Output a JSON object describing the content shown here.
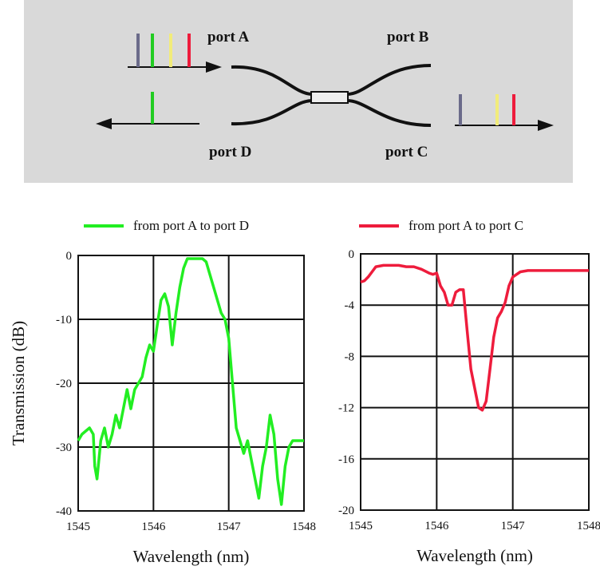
{
  "diagram": {
    "ports": {
      "a": "port A",
      "b": "port B",
      "c": "port C",
      "d": "port D"
    },
    "colors": {
      "background": "#d9d9d9",
      "line_gray": "#6b6b8a",
      "line_green": "#22cc22",
      "line_yellow": "#f2ec7a",
      "line_red": "#ee1c3c"
    }
  },
  "chart_data": [
    {
      "type": "line",
      "legend": "from port A to port D",
      "xlabel": "Wavelength (nm)",
      "ylabel": "Transmission (dB)",
      "xlim": [
        1545,
        1548
      ],
      "ylim": [
        -40,
        0
      ],
      "xticks": [
        "1545",
        "1546",
        "1547",
        "1548"
      ],
      "yticks": [
        "0",
        "-10",
        "-20",
        "-30",
        "-40"
      ],
      "grid": true,
      "color": "#22ee22",
      "x": [
        1545.0,
        1545.05,
        1545.1,
        1545.15,
        1545.2,
        1545.22,
        1545.25,
        1545.3,
        1545.35,
        1545.4,
        1545.45,
        1545.5,
        1545.55,
        1545.6,
        1545.65,
        1545.7,
        1545.75,
        1545.8,
        1545.85,
        1545.9,
        1545.95,
        1546.0,
        1546.05,
        1546.1,
        1546.15,
        1546.2,
        1546.25,
        1546.3,
        1546.35,
        1546.4,
        1546.45,
        1546.5,
        1546.55,
        1546.6,
        1546.65,
        1546.7,
        1546.75,
        1546.8,
        1546.85,
        1546.9,
        1546.95,
        1547.0,
        1547.05,
        1547.1,
        1547.15,
        1547.2,
        1547.25,
        1547.3,
        1547.35,
        1547.4,
        1547.45,
        1547.5,
        1547.55,
        1547.6,
        1547.65,
        1547.7,
        1547.75,
        1547.8,
        1547.85,
        1547.9,
        1547.95,
        1548.0
      ],
      "y": [
        -29,
        -28,
        -27.5,
        -27,
        -28,
        -33,
        -35,
        -29,
        -27,
        -30,
        -28,
        -25,
        -27,
        -24,
        -21,
        -24,
        -21,
        -20,
        -19,
        -16,
        -14,
        -15,
        -11,
        -7,
        -6,
        -8,
        -14,
        -9,
        -5,
        -2,
        -0.5,
        -0.5,
        -0.5,
        -0.5,
        -0.5,
        -1,
        -3,
        -5,
        -7,
        -9,
        -10,
        -13,
        -20,
        -27,
        -29,
        -31,
        -29,
        -32,
        -35,
        -38,
        -33,
        -30,
        -25,
        -28,
        -35,
        -39,
        -33,
        -30,
        -29,
        -29,
        -29,
        -29
      ]
    },
    {
      "type": "line",
      "legend": "from port A to port C",
      "xlabel": "Wavelength (nm)",
      "ylabel": "",
      "xlim": [
        1545,
        1548
      ],
      "ylim": [
        -20,
        0
      ],
      "xticks": [
        "1545",
        "1546",
        "1547",
        "1548"
      ],
      "yticks": [
        "0",
        "-4",
        "-8",
        "-12",
        "-16",
        "-20"
      ],
      "grid": true,
      "color": "#ee1c3c",
      "x": [
        1545.0,
        1545.05,
        1545.1,
        1545.15,
        1545.2,
        1545.3,
        1545.4,
        1545.5,
        1545.6,
        1545.7,
        1545.8,
        1545.9,
        1545.95,
        1546.0,
        1546.05,
        1546.1,
        1546.15,
        1546.2,
        1546.25,
        1546.3,
        1546.35,
        1546.4,
        1546.45,
        1546.5,
        1546.55,
        1546.6,
        1546.65,
        1546.7,
        1546.75,
        1546.8,
        1546.85,
        1546.9,
        1546.95,
        1547.0,
        1547.1,
        1547.2,
        1547.4,
        1547.6,
        1547.8,
        1548.0
      ],
      "y": [
        -2.2,
        -2.1,
        -1.8,
        -1.4,
        -1.0,
        -0.9,
        -0.9,
        -0.9,
        -1.0,
        -1.0,
        -1.2,
        -1.5,
        -1.6,
        -1.5,
        -2.5,
        -3.0,
        -4.0,
        -4.0,
        -3.0,
        -2.8,
        -2.8,
        -6.0,
        -9.0,
        -10.5,
        -12.0,
        -12.2,
        -11.5,
        -9.0,
        -6.5,
        -5.0,
        -4.5,
        -3.8,
        -2.5,
        -1.8,
        -1.4,
        -1.3,
        -1.3,
        -1.3,
        -1.3,
        -1.3
      ]
    }
  ]
}
